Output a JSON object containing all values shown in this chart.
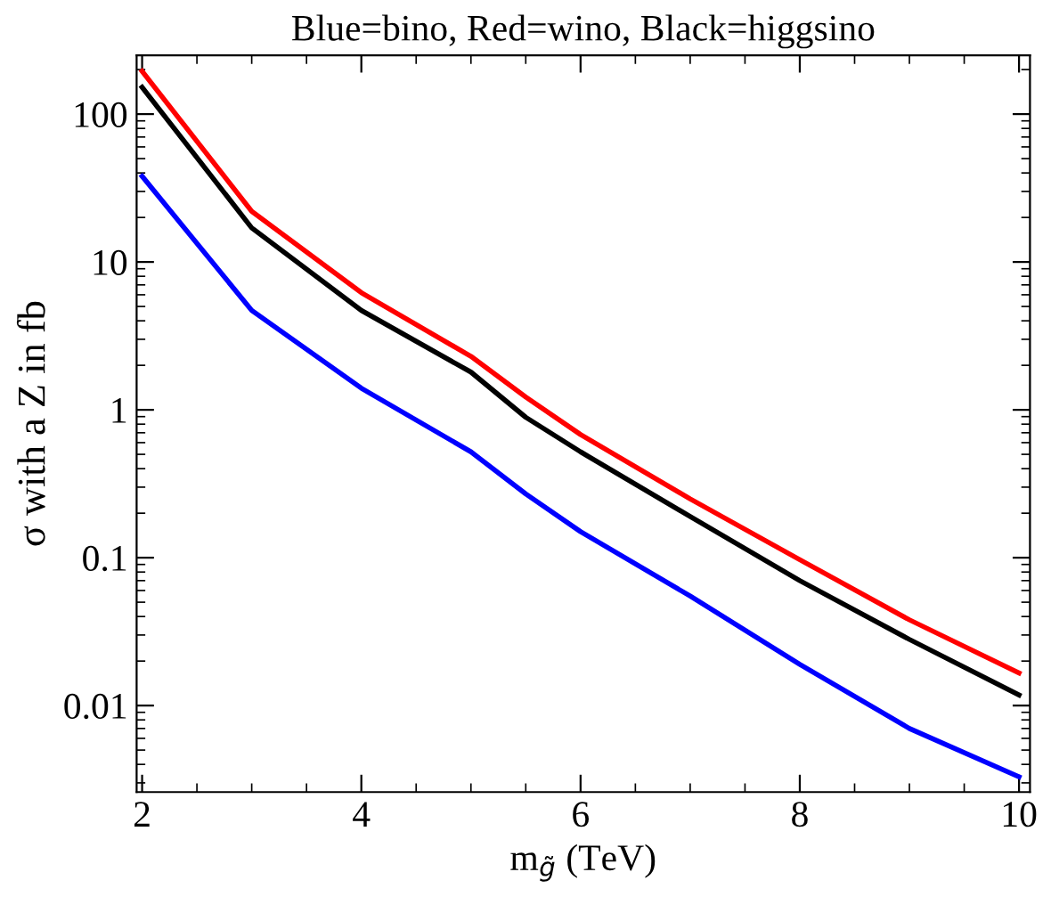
{
  "chart_data": {
    "type": "line",
    "title": "Blue=bino, Red=wino, Black=higgsino",
    "xlabel": "m$_{g̃}$ (TeV)",
    "ylabel": "σ with a Z in fb",
    "log": "y",
    "xlim": [
      1.95,
      10.1
    ],
    "ylim": [
      0.0026,
      250
    ],
    "xticks": [
      2,
      4,
      6,
      8,
      10
    ],
    "yticks": [
      {
        "value": 100,
        "label": "100"
      },
      {
        "value": 10,
        "label": "10"
      },
      {
        "value": 1,
        "label": "1"
      },
      {
        "value": 0.1,
        "label": "0.1"
      },
      {
        "value": 0.01,
        "label": "0.01"
      }
    ],
    "grid": false,
    "line_style": "solid",
    "marker": "none",
    "x": [
      2,
      3,
      4,
      5,
      5.5,
      6,
      7,
      8,
      9,
      10
    ],
    "series": [
      {
        "color": "#ff0000",
        "values": [
          195,
          22,
          6.2,
          2.3,
          1.22,
          0.68,
          0.25,
          0.097,
          0.038,
          0.0166
        ]
      },
      {
        "color": "#000000",
        "values": [
          152,
          17,
          4.7,
          1.8,
          0.89,
          0.52,
          0.19,
          0.07,
          0.028,
          0.0118
        ]
      },
      {
        "color": "#0000ff",
        "values": [
          38,
          4.7,
          1.4,
          0.52,
          0.27,
          0.15,
          0.055,
          0.019,
          0.007,
          0.0033
        ]
      }
    ]
  }
}
